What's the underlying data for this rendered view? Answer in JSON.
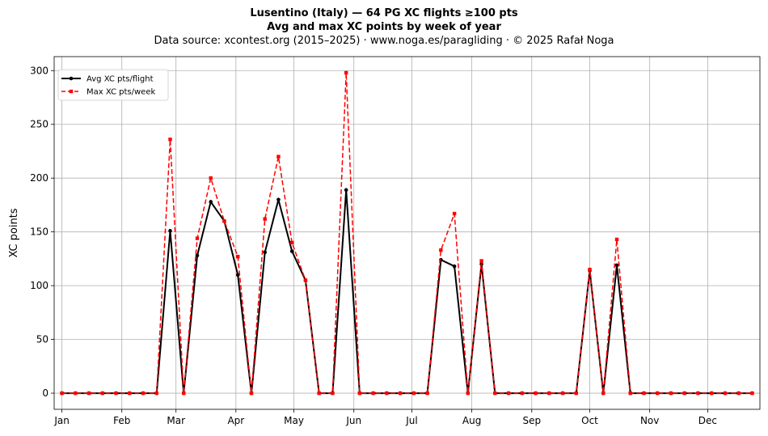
{
  "chart_data": {
    "type": "line",
    "title": "Lusentino (Italy)  —  64 PG XC flights ≥100 pts",
    "subtitle": "Avg and max XC points by week of year",
    "source_line": "Data source: xcontest.org (2015–2025)  ·  www.noga.es/paragliding  ·  © 2025 Rafał Noga",
    "ylabel": "XC points",
    "xlabel": "",
    "ylim": [
      -15,
      313
    ],
    "xlim": [
      -4,
      361
    ],
    "yticks": [
      0,
      50,
      100,
      150,
      200,
      250,
      300
    ],
    "xticks": [
      {
        "label": "Jan",
        "day": 0
      },
      {
        "label": "Feb",
        "day": 31
      },
      {
        "label": "Mar",
        "day": 59
      },
      {
        "label": "Apr",
        "day": 90
      },
      {
        "label": "May",
        "day": 120
      },
      {
        "label": "Jun",
        "day": 151
      },
      {
        "label": "Jul",
        "day": 181
      },
      {
        "label": "Aug",
        "day": 212
      },
      {
        "label": "Sep",
        "day": 243
      },
      {
        "label": "Oct",
        "day": 273
      },
      {
        "label": "Nov",
        "day": 304
      },
      {
        "label": "Dec",
        "day": 334
      }
    ],
    "grid": true,
    "legend_position": "top-left",
    "x": [
      0,
      7,
      14,
      21,
      28,
      35,
      42,
      49,
      56,
      63,
      70,
      77,
      84,
      91,
      98,
      105,
      112,
      119,
      126,
      133,
      140,
      147,
      154,
      161,
      168,
      175,
      182,
      189,
      196,
      203,
      210,
      217,
      224,
      231,
      238,
      245,
      252,
      259,
      266,
      273,
      280,
      287,
      294,
      301,
      308,
      315,
      322,
      329,
      336,
      343,
      350,
      357
    ],
    "series": [
      {
        "name": "Avg XC pts/flight",
        "color": "#000000",
        "style": "solid",
        "marker": "circle",
        "values": [
          0,
          0,
          0,
          0,
          0,
          0,
          0,
          0,
          151,
          0,
          128,
          178,
          160,
          110,
          0,
          131,
          180,
          132,
          105,
          0,
          0,
          189,
          0,
          0,
          0,
          0,
          0,
          0,
          124,
          118,
          0,
          120,
          0,
          0,
          0,
          0,
          0,
          0,
          0,
          114,
          0,
          119,
          0,
          0,
          0,
          0,
          0,
          0,
          0,
          0,
          0,
          0
        ]
      },
      {
        "name": "Max XC pts/week",
        "color": "#ff0000",
        "style": "dashed",
        "marker": "square",
        "values": [
          0,
          0,
          0,
          0,
          0,
          0,
          0,
          0,
          236,
          0,
          144,
          200,
          160,
          127,
          0,
          162,
          220,
          140,
          105,
          0,
          0,
          298,
          0,
          0,
          0,
          0,
          0,
          0,
          133,
          167,
          0,
          123,
          0,
          0,
          0,
          0,
          0,
          0,
          0,
          115,
          0,
          143,
          0,
          0,
          0,
          0,
          0,
          0,
          0,
          0,
          0,
          0
        ]
      }
    ]
  }
}
